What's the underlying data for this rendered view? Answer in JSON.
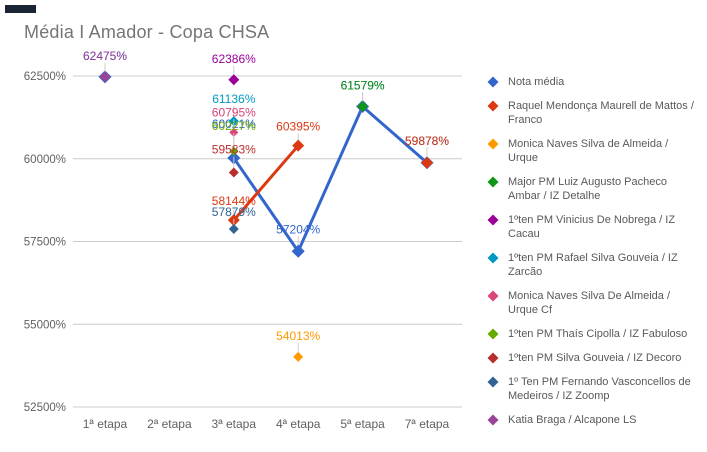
{
  "title": "Média I Amador - Copa CHSA",
  "colors": {
    "background": "#ffffff",
    "title": "#757575",
    "axis_label": "#616161",
    "gridline": "#cccccc",
    "annotation_stem": "#cccccc"
  },
  "chart_data": {
    "type": "line",
    "title": "Média I Amador - Copa CHSA",
    "categories": [
      "1ª etapa",
      "2ª etapa",
      "3ª etapa",
      "4ª etapa",
      "5ª etapa",
      "7ª etapa"
    ],
    "y_ticks": [
      62500,
      60000,
      57500,
      55000,
      52500
    ],
    "y_tick_suffix": "%",
    "ylim": [
      52500,
      62500
    ],
    "grid": true,
    "legend_position": "right",
    "point_shape": "diamond",
    "series": [
      {
        "name": "Nota média",
        "color": "#3366cc",
        "line_width": 3,
        "point_size": 6.5,
        "values": [
          62475,
          null,
          60021,
          57204,
          61579,
          59878
        ],
        "label_dy": {
          "2": -30,
          "3": -18,
          "5": -18
        }
      },
      {
        "name": "Raquel Mendonça Maurell de Mattos / Franco",
        "color": "#dc3912",
        "line_width": 3,
        "point_size": 6,
        "values": [
          null,
          null,
          58144,
          60395,
          null,
          59878
        ],
        "label_dy": {
          "2": -15,
          "3": -15,
          "5": -18
        }
      },
      {
        "name": "Monica Naves Silva de Almeida / Urque",
        "color": "#ff9900",
        "line_width": 2,
        "point_size": 5,
        "values": [
          null,
          null,
          null,
          54013,
          null,
          null
        ]
      },
      {
        "name": "Major PM Luiz Augusto Pacheco Ambar / IZ Detalhe",
        "color": "#109618",
        "line_width": 2,
        "point_size": 5.5,
        "values": [
          null,
          null,
          null,
          null,
          61579,
          null
        ]
      },
      {
        "name": "1ºten PM Vinicius De Nobrega / IZ Cacau",
        "color": "#990099",
        "line_width": 2,
        "point_size": 5.5,
        "values": [
          null,
          null,
          62386,
          null,
          null,
          null
        ]
      },
      {
        "name": "1ºten PM Rafael Silva Gouveia / IZ Zarcão",
        "color": "#0099c6",
        "line_width": 2,
        "point_size": 5,
        "values": [
          null,
          null,
          61136,
          null,
          null,
          null
        ],
        "label_dy": {
          "2": -18
        }
      },
      {
        "name": "Monica Naves Silva De Almeida / Urque Cf",
        "color": "#dd4477",
        "line_width": 2,
        "point_size": 4.5,
        "values": [
          null,
          null,
          60795,
          null,
          null,
          null
        ],
        "label_dy": {
          "2": -16
        }
      },
      {
        "name": "1ºten PM Thaís Cipolla / IZ Fabuloso",
        "color": "#66aa00",
        "line_width": 2,
        "point_size": 4.5,
        "values": [
          null,
          null,
          60227,
          null,
          null,
          null
        ],
        "label_dy": {
          "2": -21
        }
      },
      {
        "name": "1ºten PM Silva Gouveia / IZ Decoro",
        "color": "#b82e2e",
        "line_width": 2,
        "point_size": 5,
        "values": [
          null,
          null,
          59583,
          null,
          null,
          null
        ],
        "label_dy": {
          "2": -19
        }
      },
      {
        "name": "1º Ten PM Fernando Vasconcellos de Medeiros / IZ Zoomp",
        "color": "#316395",
        "line_width": 2,
        "point_size": 5,
        "values": [
          null,
          null,
          57879,
          null,
          null,
          null
        ],
        "label_dy": {
          "2": -13
        }
      },
      {
        "name": "Katia Braga / Alcapone LS",
        "color": "#994499",
        "line_width": 2,
        "point_size": 5.5,
        "values": [
          62475,
          null,
          null,
          null,
          null,
          null
        ]
      }
    ]
  }
}
